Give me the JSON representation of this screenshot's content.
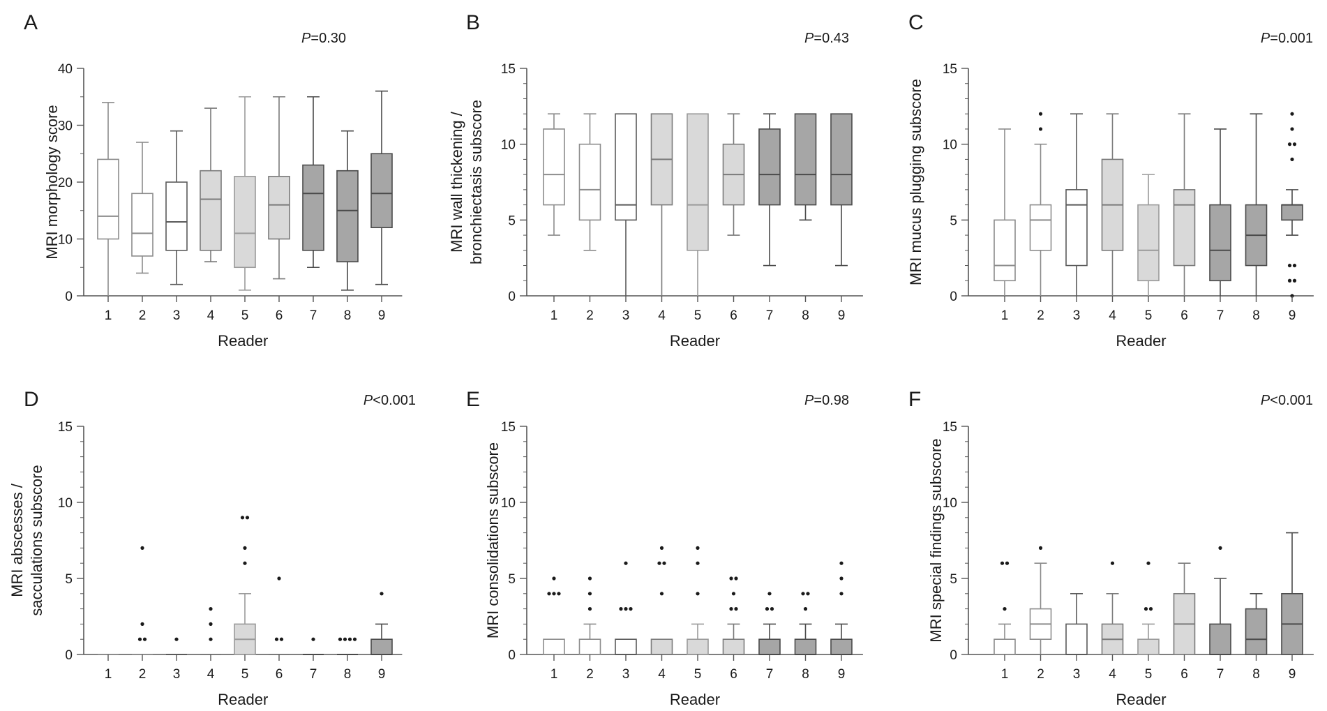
{
  "figure": {
    "reader_label": "Reader"
  },
  "colors": {
    "fill": [
      "#ffffff",
      "#ffffff",
      "#ffffff",
      "#d9d9d9",
      "#d9d9d9",
      "#d9d9d9",
      "#a6a6a6",
      "#a6a6a6",
      "#a6a6a6"
    ],
    "stroke": [
      "#8c8c8c",
      "#8c8c8c",
      "#5a5a5a",
      "#7a7a7a",
      "#9a9a9a",
      "#7a7a7a",
      "#4a4a4a",
      "#4a4a4a",
      "#4a4a4a"
    ],
    "outlier": "#1a1a1a"
  },
  "chart_data": [
    {
      "panel": "A",
      "type": "box",
      "pvalue": "=0.30",
      "ylabel": [
        "MRI morphology score"
      ],
      "xlabel": "Reader",
      "ylim": [
        0,
        40
      ],
      "yticks": [
        0,
        10,
        20,
        30,
        40
      ],
      "minor_step": 5,
      "categories": [
        "1",
        "2",
        "3",
        "4",
        "5",
        "6",
        "7",
        "8",
        "9"
      ],
      "boxes": [
        {
          "min": 0,
          "q1": 10,
          "median": 14,
          "q3": 24,
          "max": 34,
          "outliers": []
        },
        {
          "min": 4,
          "q1": 7,
          "median": 11,
          "q3": 18,
          "max": 27,
          "outliers": []
        },
        {
          "min": 2,
          "q1": 8,
          "median": 13,
          "q3": 20,
          "max": 29,
          "outliers": []
        },
        {
          "min": 6,
          "q1": 8,
          "median": 17,
          "q3": 22,
          "max": 33,
          "outliers": []
        },
        {
          "min": 1,
          "q1": 5,
          "median": 11,
          "q3": 21,
          "max": 35,
          "outliers": []
        },
        {
          "min": 3,
          "q1": 10,
          "median": 16,
          "q3": 21,
          "max": 35,
          "outliers": []
        },
        {
          "min": 5,
          "q1": 8,
          "median": 18,
          "q3": 23,
          "max": 35,
          "outliers": []
        },
        {
          "min": 1,
          "q1": 6,
          "median": 15,
          "q3": 22,
          "max": 29,
          "outliers": []
        },
        {
          "min": 2,
          "q1": 12,
          "median": 18,
          "q3": 25,
          "max": 36,
          "outliers": []
        }
      ]
    },
    {
      "panel": "B",
      "type": "box",
      "pvalue": "=0.43",
      "ylabel": [
        "MRI wall thickening /",
        "bronchiectasis subscore"
      ],
      "xlabel": "Reader",
      "ylim": [
        0,
        15
      ],
      "yticks": [
        0,
        5,
        10,
        15
      ],
      "minor_step": 1,
      "categories": [
        "1",
        "2",
        "3",
        "4",
        "5",
        "6",
        "7",
        "8",
        "9"
      ],
      "boxes": [
        {
          "min": 4,
          "q1": 6,
          "median": 8,
          "q3": 11,
          "max": 12,
          "outliers": []
        },
        {
          "min": 3,
          "q1": 5,
          "median": 7,
          "q3": 10,
          "max": 12,
          "outliers": []
        },
        {
          "min": 0,
          "q1": 5,
          "median": 6,
          "q3": 12,
          "max": 12,
          "outliers": []
        },
        {
          "min": 0,
          "q1": 6,
          "median": 9,
          "q3": 12,
          "max": 12,
          "outliers": []
        },
        {
          "min": 0,
          "q1": 3,
          "median": 6,
          "q3": 12,
          "max": 12,
          "outliers": []
        },
        {
          "min": 4,
          "q1": 6,
          "median": 8,
          "q3": 10,
          "max": 12,
          "outliers": []
        },
        {
          "min": 2,
          "q1": 6,
          "median": 8,
          "q3": 11,
          "max": 12,
          "outliers": []
        },
        {
          "min": 5,
          "q1": 6,
          "median": 8,
          "q3": 12,
          "max": 12,
          "outliers": []
        },
        {
          "min": 2,
          "q1": 6,
          "median": 8,
          "q3": 12,
          "max": 12,
          "outliers": []
        }
      ]
    },
    {
      "panel": "C",
      "type": "box",
      "pvalue": "=0.001",
      "ylabel": [
        "MRI mucus plugging subscore"
      ],
      "xlabel": "Reader",
      "ylim": [
        0,
        15
      ],
      "yticks": [
        0,
        5,
        10,
        15
      ],
      "minor_step": 1,
      "categories": [
        "1",
        "2",
        "3",
        "4",
        "5",
        "6",
        "7",
        "8",
        "9"
      ],
      "boxes": [
        {
          "min": 0,
          "q1": 1,
          "median": 2,
          "q3": 5,
          "max": 11,
          "outliers": []
        },
        {
          "min": 0,
          "q1": 3,
          "median": 5,
          "q3": 6,
          "max": 10,
          "outliers": [
            11,
            12
          ]
        },
        {
          "min": 0,
          "q1": 2,
          "median": 6,
          "q3": 7,
          "max": 12,
          "outliers": []
        },
        {
          "min": 0,
          "q1": 3,
          "median": 6,
          "q3": 9,
          "max": 12,
          "outliers": []
        },
        {
          "min": 0,
          "q1": 1,
          "median": 3,
          "q3": 6,
          "max": 8,
          "outliers": []
        },
        {
          "min": 0,
          "q1": 2,
          "median": 6,
          "q3": 7,
          "max": 12,
          "outliers": []
        },
        {
          "min": 0,
          "q1": 1,
          "median": 3,
          "q3": 6,
          "max": 11,
          "outliers": []
        },
        {
          "min": 0,
          "q1": 2,
          "median": 4,
          "q3": 6,
          "max": 12,
          "outliers": []
        },
        {
          "min": 4,
          "q1": 5,
          "median": 6,
          "q3": 6,
          "max": 7,
          "outliers": [
            0,
            1,
            1,
            2,
            2,
            9,
            10,
            10,
            11,
            12
          ]
        }
      ]
    },
    {
      "panel": "D",
      "type": "box",
      "pvalue": "<0.001",
      "ylabel": [
        "MRI abscesses /",
        "sacculations subscore"
      ],
      "xlabel": "Reader",
      "ylim": [
        0,
        15
      ],
      "yticks": [
        0,
        5,
        10,
        15
      ],
      "minor_step": 1,
      "categories": [
        "1",
        "2",
        "3",
        "4",
        "5",
        "6",
        "7",
        "8",
        "9"
      ],
      "boxes": [
        {
          "min": 0,
          "q1": 0,
          "median": 0,
          "q3": 0,
          "max": 0,
          "outliers": []
        },
        {
          "min": 0,
          "q1": 0,
          "median": 0,
          "q3": 0,
          "max": 0,
          "outliers": [
            1,
            1,
            2,
            7
          ]
        },
        {
          "min": 0,
          "q1": 0,
          "median": 0,
          "q3": 0,
          "max": 0,
          "outliers": [
            1
          ]
        },
        {
          "min": 0,
          "q1": 0,
          "median": 0,
          "q3": 0,
          "max": 0,
          "outliers": [
            1,
            2,
            3
          ]
        },
        {
          "min": 0,
          "q1": 0,
          "median": 1,
          "q3": 2,
          "max": 4,
          "outliers": [
            6,
            7,
            9,
            9
          ]
        },
        {
          "min": 0,
          "q1": 0,
          "median": 0,
          "q3": 0,
          "max": 0,
          "outliers": [
            1,
            1,
            5
          ]
        },
        {
          "min": 0,
          "q1": 0,
          "median": 0,
          "q3": 0,
          "max": 0,
          "outliers": [
            1
          ]
        },
        {
          "min": 0,
          "q1": 0,
          "median": 0,
          "q3": 0,
          "max": 0,
          "outliers": [
            1,
            1,
            1,
            1
          ]
        },
        {
          "min": 0,
          "q1": 0,
          "median": 0,
          "q3": 1,
          "max": 2,
          "outliers": [
            4
          ]
        }
      ]
    },
    {
      "panel": "E",
      "type": "box",
      "pvalue": "=0.98",
      "ylabel": [
        "MRI consolidations subscore"
      ],
      "xlabel": "Reader",
      "ylim": [
        0,
        15
      ],
      "yticks": [
        0,
        5,
        10,
        15
      ],
      "minor_step": 1,
      "categories": [
        "1",
        "2",
        "3",
        "4",
        "5",
        "6",
        "7",
        "8",
        "9"
      ],
      "boxes": [
        {
          "min": 0,
          "q1": 0,
          "median": 0,
          "q3": 1,
          "max": 1,
          "outliers": [
            4,
            4,
            4,
            5
          ]
        },
        {
          "min": 0,
          "q1": 0,
          "median": 0,
          "q3": 1,
          "max": 2,
          "outliers": [
            3,
            4,
            5
          ]
        },
        {
          "min": 0,
          "q1": 0,
          "median": 0,
          "q3": 1,
          "max": 1,
          "outliers": [
            3,
            3,
            3,
            6
          ]
        },
        {
          "min": 0,
          "q1": 0,
          "median": 0,
          "q3": 1,
          "max": 1,
          "outliers": [
            4,
            6,
            6,
            7
          ]
        },
        {
          "min": 0,
          "q1": 0,
          "median": 0,
          "q3": 1,
          "max": 2,
          "outliers": [
            4,
            6,
            7
          ]
        },
        {
          "min": 0,
          "q1": 0,
          "median": 0,
          "q3": 1,
          "max": 2,
          "outliers": [
            3,
            3,
            4,
            5,
            5
          ]
        },
        {
          "min": 0,
          "q1": 0,
          "median": 0,
          "q3": 1,
          "max": 2,
          "outliers": [
            3,
            3,
            4
          ]
        },
        {
          "min": 0,
          "q1": 0,
          "median": 0,
          "q3": 1,
          "max": 2,
          "outliers": [
            3,
            4,
            4
          ]
        },
        {
          "min": 0,
          "q1": 0,
          "median": 0,
          "q3": 1,
          "max": 2,
          "outliers": [
            4,
            5,
            6
          ]
        }
      ]
    },
    {
      "panel": "F",
      "type": "box",
      "pvalue": "<0.001",
      "ylabel": [
        "MRI special findings subscore"
      ],
      "xlabel": "Reader",
      "ylim": [
        0,
        15
      ],
      "yticks": [
        0,
        5,
        10,
        15
      ],
      "minor_step": 1,
      "categories": [
        "1",
        "2",
        "3",
        "4",
        "5",
        "6",
        "7",
        "8",
        "9"
      ],
      "boxes": [
        {
          "min": 0,
          "q1": 0,
          "median": 0,
          "q3": 1,
          "max": 2,
          "outliers": [
            3,
            6,
            6
          ]
        },
        {
          "min": 0,
          "q1": 1,
          "median": 2,
          "q3": 3,
          "max": 6,
          "outliers": [
            7
          ]
        },
        {
          "min": 0,
          "q1": 0,
          "median": 0,
          "q3": 2,
          "max": 4,
          "outliers": []
        },
        {
          "min": 0,
          "q1": 0,
          "median": 1,
          "q3": 2,
          "max": 4,
          "outliers": [
            6
          ]
        },
        {
          "min": 0,
          "q1": 0,
          "median": 0,
          "q3": 1,
          "max": 2,
          "outliers": [
            3,
            3,
            6
          ]
        },
        {
          "min": 0,
          "q1": 0,
          "median": 2,
          "q3": 4,
          "max": 6,
          "outliers": []
        },
        {
          "min": 0,
          "q1": 0,
          "median": 0,
          "q3": 2,
          "max": 5,
          "outliers": [
            7
          ]
        },
        {
          "min": 0,
          "q1": 0,
          "median": 1,
          "q3": 3,
          "max": 4,
          "outliers": []
        },
        {
          "min": 0,
          "q1": 0,
          "median": 2,
          "q3": 4,
          "max": 8,
          "outliers": []
        }
      ]
    }
  ]
}
